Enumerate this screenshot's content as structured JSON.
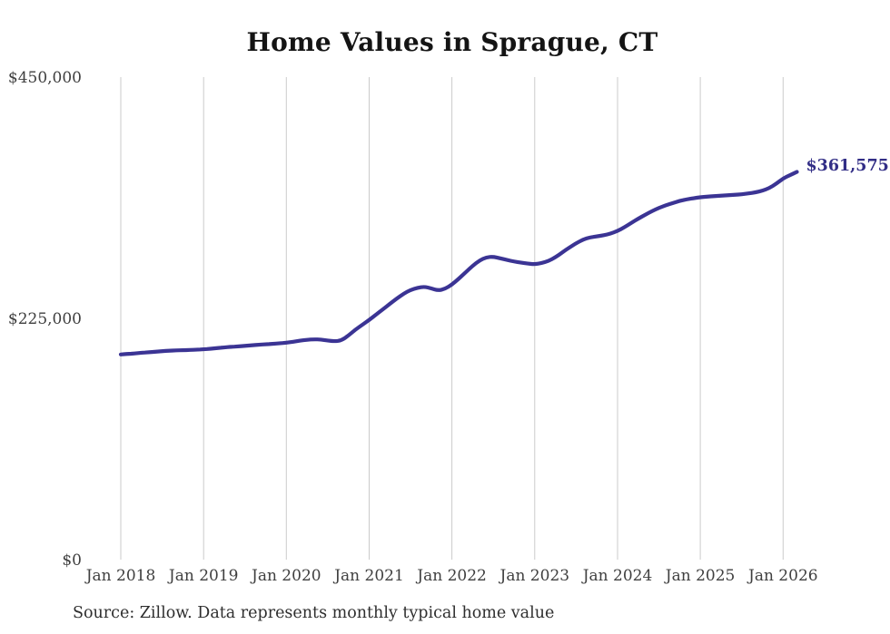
{
  "title": "Home Values in Sprague, CT",
  "end_label": "$361,575",
  "source_note": "Source: Zillow. Data represents monthly typical home value",
  "colors": {
    "line": "#3b3494",
    "end_label": "#322e86",
    "gridline": "#cbcbcb",
    "title": "#141414",
    "tick_label": "#3f3f3f",
    "source_text": "#2e2e2e",
    "background": "#ffffff"
  },
  "chart_data": {
    "type": "line",
    "title": "Home Values in Sprague, CT",
    "series_name": "Monthly typical home value (USD)",
    "interval": "monthly",
    "start_month": "2018-01",
    "end_month": "2026-03",
    "final_value": 361575,
    "final_value_label": "$361,575",
    "xlabel": "",
    "ylabel": "",
    "x_tick_labels": [
      "Jan 2018",
      "Jan 2019",
      "Jan 2020",
      "Jan 2021",
      "Jan 2022",
      "Jan 2023",
      "Jan 2024",
      "Jan 2025",
      "Jan 2026"
    ],
    "y_tick_labels": [
      "$0",
      "$225,000",
      "$450,000"
    ],
    "y_tick_values": [
      0,
      225000,
      450000
    ],
    "ylim": [
      0,
      450000
    ],
    "grid": "vertical-only",
    "legend": "none",
    "values": [
      191300,
      191800,
      192300,
      192900,
      193400,
      193900,
      194400,
      194800,
      195100,
      195300,
      195500,
      195800,
      196200,
      196700,
      197300,
      197900,
      198400,
      198900,
      199400,
      199900,
      200400,
      200800,
      201200,
      201700,
      202300,
      203200,
      204200,
      205000,
      205500,
      205300,
      204300,
      203600,
      204500,
      209000,
      214500,
      219000,
      223500,
      228500,
      233500,
      238500,
      243500,
      248000,
      251500,
      253500,
      254500,
      253000,
      251000,
      252500,
      256500,
      262000,
      268000,
      274000,
      279000,
      282000,
      282500,
      281000,
      279500,
      278000,
      277000,
      276000,
      275500,
      276500,
      278500,
      282000,
      286500,
      291000,
      295000,
      298500,
      300500,
      301500,
      302500,
      304000,
      306500,
      310000,
      314000,
      318000,
      321500,
      325000,
      328000,
      330500,
      332500,
      334500,
      336000,
      337000,
      338000,
      338500,
      339000,
      339400,
      339800,
      340200,
      340700,
      341500,
      342500,
      344000,
      346500,
      350500,
      355500,
      358600,
      361575
    ]
  }
}
